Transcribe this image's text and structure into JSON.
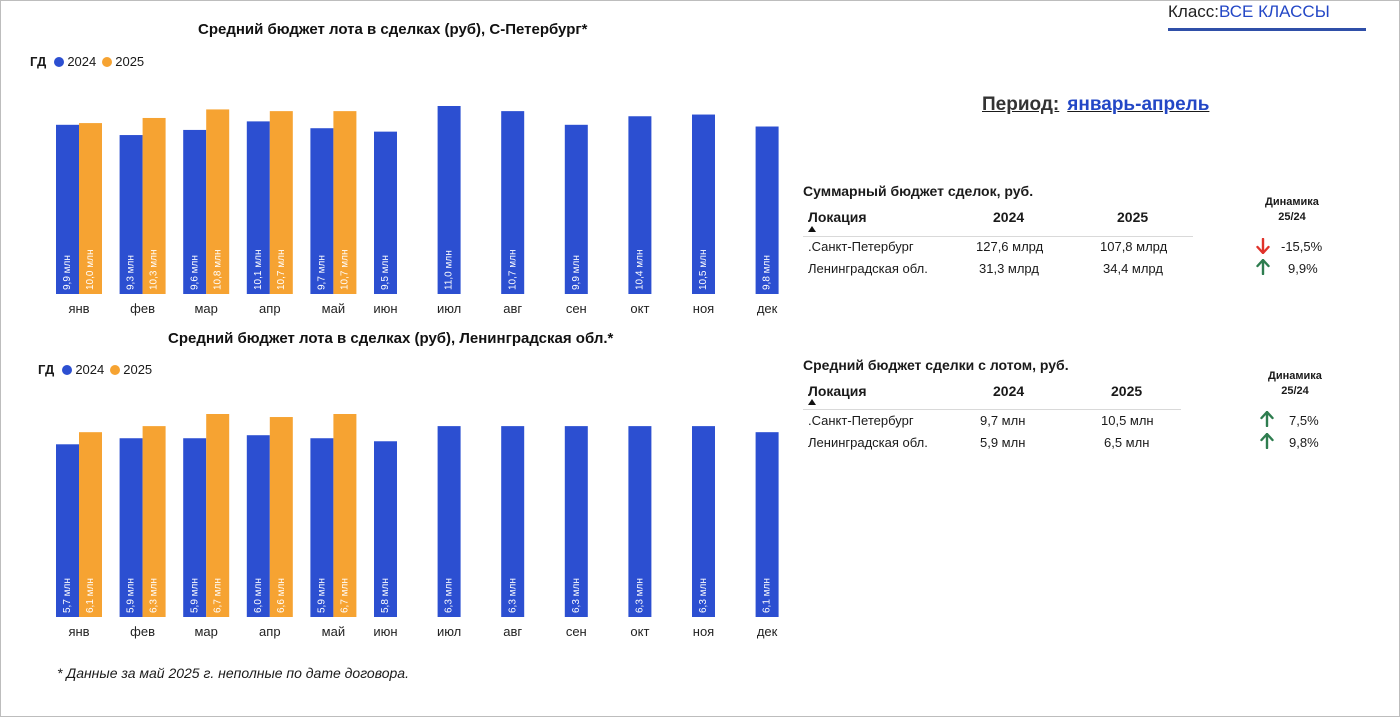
{
  "filter": {
    "label": "Класс:",
    "value": "ВСЕ КЛАССЫ"
  },
  "period": {
    "label": "Период:",
    "value": "январь-апрель"
  },
  "colors": {
    "s2024": "#2c4fd1",
    "s2025": "#f6a332",
    "up": "#2e7d4f",
    "down": "#e0332b",
    "accent": "#2347c6"
  },
  "footnote": "* Данные за май 2025 г. неполные по дате договора.",
  "chart_data": [
    {
      "type": "bar",
      "title": "Средний бюджет  лота в сделках (руб), С-Петербург*",
      "legend_prefix": "ГД",
      "categories": [
        "янв",
        "фев",
        "мар",
        "апр",
        "май",
        "июн",
        "июл",
        "авг",
        "сен",
        "окт",
        "ноя",
        "дек"
      ],
      "series": [
        {
          "name": "2024",
          "values": [
            9.9,
            9.3,
            9.6,
            10.1,
            9.7,
            9.5,
            11.0,
            10.7,
            9.9,
            10.4,
            10.5,
            9.8
          ],
          "labels": [
            "9,9 млн",
            "9,3 млн",
            "9,6 млн",
            "10,1 млн",
            "9,7 млн",
            "9,5 млн",
            "11,0 млн",
            "10,7 млн",
            "9,9 млн",
            "10,4 млн",
            "10,5 млн",
            "9,8 млн"
          ]
        },
        {
          "name": "2025",
          "values": [
            10.0,
            10.3,
            10.8,
            10.7,
            10.7,
            null,
            null,
            null,
            null,
            null,
            null,
            null
          ],
          "labels": [
            "10,0 млн",
            "10,3 млн",
            "10,8 млн",
            "10,7 млн",
            "10,7 млн",
            "",
            "",
            "",
            "",
            "",
            "",
            ""
          ]
        }
      ],
      "unit": "млн",
      "ylim": [
        0,
        11.0
      ]
    },
    {
      "type": "bar",
      "title": "Средний бюджет  лота в сделках (руб), Ленинградская обл.*",
      "legend_prefix": "ГД",
      "categories": [
        "янв",
        "фев",
        "мар",
        "апр",
        "май",
        "июн",
        "июл",
        "авг",
        "сен",
        "окт",
        "ноя",
        "дек"
      ],
      "series": [
        {
          "name": "2024",
          "values": [
            5.7,
            5.9,
            5.9,
            6.0,
            5.9,
            5.8,
            6.3,
            6.3,
            6.3,
            6.3,
            6.3,
            6.1
          ],
          "labels": [
            "5,7 млн",
            "5,9 млн",
            "5,9 млн",
            "6,0 млн",
            "5,9 млн",
            "5,8 млн",
            "6,3 млн",
            "6,3 млн",
            "6,3 млн",
            "6,3 млн",
            "6,3 млн",
            "6,1 млн"
          ]
        },
        {
          "name": "2025",
          "values": [
            6.1,
            6.3,
            6.7,
            6.6,
            6.7,
            null,
            null,
            null,
            null,
            null,
            null,
            null
          ],
          "labels": [
            "6,1 млн",
            "6,3 млн",
            "6,7 млн",
            "6,6 млн",
            "6,7 млн",
            "",
            "",
            "",
            "",
            "",
            "",
            ""
          ]
        }
      ],
      "unit": "млн",
      "ylim": [
        0,
        6.7
      ]
    },
    {
      "type": "table",
      "title": "Суммарный бюджет сделок, руб.",
      "columns": [
        "Локация",
        "2024",
        "2025",
        "Динамика 25/24"
      ],
      "dynamics_header": [
        "Динамика",
        "25/24"
      ],
      "rows": [
        {
          "location": ".Санкт-Петербург",
          "v2024": "127,6 млрд",
          "v2025": "107,8 млрд",
          "dynamics": "-15,5%",
          "trend": "down"
        },
        {
          "location": "Ленинградская обл.",
          "v2024": "31,3 млрд",
          "v2025": "34,4 млрд",
          "dynamics": "9,9%",
          "trend": "up"
        }
      ]
    },
    {
      "type": "table",
      "title": "Средний бюджет сделки с лотом, руб.",
      "columns": [
        "Локация",
        "2024",
        "2025",
        "Динамика 25/24"
      ],
      "dynamics_header": [
        "Динамика",
        "25/24"
      ],
      "rows": [
        {
          "location": ".Санкт-Петербург",
          "v2024": "9,7 млн",
          "v2025": "10,5 млн",
          "dynamics": "7,5%",
          "trend": "up"
        },
        {
          "location": "Ленинградская обл.",
          "v2024": "5,9 млн",
          "v2025": "6,5 млн",
          "dynamics": "9,8%",
          "trend": "up"
        }
      ]
    }
  ]
}
